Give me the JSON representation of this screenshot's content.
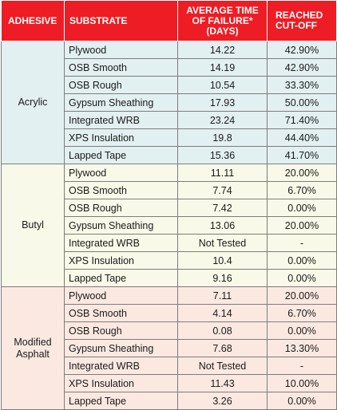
{
  "headers": {
    "adhesive": "ADHESIVE",
    "substrate": "SUBSTRATE",
    "avg_time": "AVERAGE TIME OF FAILURE* (DAYS)",
    "reached": "REACHED CUT-OFF"
  },
  "colors": {
    "header_bg": "#ee1c24",
    "acrylic_bg": "#e3f0f1",
    "butyl_bg": "#f8f9e8",
    "modified_asphalt_bg": "#fbe9e1"
  },
  "groups": [
    {
      "adhesive": "Acrylic",
      "rows": [
        {
          "substrate": "Plywood",
          "avg": "14.22",
          "cutoff": "42.90%"
        },
        {
          "substrate": "OSB Smooth",
          "avg": "14.19",
          "cutoff": "42.90%"
        },
        {
          "substrate": "OSB Rough",
          "avg": "10.54",
          "cutoff": "33.30%"
        },
        {
          "substrate": "Gypsum Sheathing",
          "avg": "17.93",
          "cutoff": "50.00%"
        },
        {
          "substrate": "Integrated WRB",
          "avg": "23.24",
          "cutoff": "71.40%"
        },
        {
          "substrate": "XPS Insulation",
          "avg": "19.8",
          "cutoff": "44.40%"
        },
        {
          "substrate": "Lapped Tape",
          "avg": "15.36",
          "cutoff": "41.70%"
        }
      ]
    },
    {
      "adhesive": "Butyl",
      "rows": [
        {
          "substrate": "Plywood",
          "avg": "11.11",
          "cutoff": "20.00%"
        },
        {
          "substrate": "OSB Smooth",
          "avg": "7.74",
          "cutoff": "6.70%"
        },
        {
          "substrate": "OSB Rough",
          "avg": "7.42",
          "cutoff": "0.00%"
        },
        {
          "substrate": "Gypsum Sheathing",
          "avg": "13.06",
          "cutoff": "20.00%"
        },
        {
          "substrate": "Integrated WRB",
          "avg": "Not Tested",
          "cutoff": "-"
        },
        {
          "substrate": "XPS Insulation",
          "avg": "10.4",
          "cutoff": "0.00%"
        },
        {
          "substrate": "Lapped Tape",
          "avg": "9.16",
          "cutoff": "0.00%"
        }
      ]
    },
    {
      "adhesive": "Modified Asphalt",
      "rows": [
        {
          "substrate": "Plywood",
          "avg": "7.11",
          "cutoff": "20.00%"
        },
        {
          "substrate": "OSB Smooth",
          "avg": "4.14",
          "cutoff": "6.70%"
        },
        {
          "substrate": "OSB Rough",
          "avg": "0.08",
          "cutoff": "0.00%"
        },
        {
          "substrate": "Gypsum Sheathing",
          "avg": "7.68",
          "cutoff": "13.30%"
        },
        {
          "substrate": "Integrated WRB",
          "avg": "Not Tested",
          "cutoff": "-"
        },
        {
          "substrate": "XPS Insulation",
          "avg": "11.43",
          "cutoff": "10.00%"
        },
        {
          "substrate": "Lapped Tape",
          "avg": "3.26",
          "cutoff": "0.00%"
        }
      ]
    }
  ]
}
